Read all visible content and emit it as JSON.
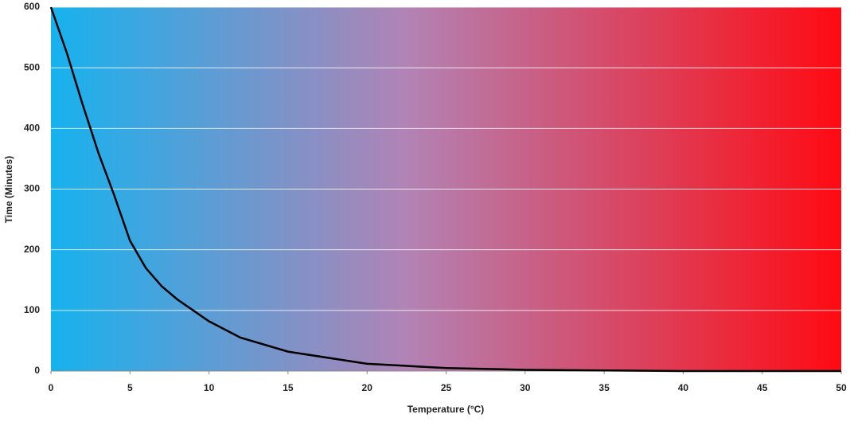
{
  "chart_data": {
    "type": "line",
    "x_label": "Temperature (°C)",
    "y_label": "Time (Minutes)",
    "x": [
      0,
      1,
      2,
      3,
      4,
      5,
      6,
      7,
      8,
      9,
      10,
      12,
      15,
      20,
      25,
      30,
      35,
      40,
      45,
      50
    ],
    "series": [
      {
        "name": "Time",
        "color": "#000000",
        "values": [
          600,
          525,
          440,
          360,
          290,
          215,
          170,
          140,
          118,
          100,
          82,
          55,
          32,
          12,
          5,
          2,
          1,
          0,
          0,
          0
        ]
      }
    ],
    "xlim": [
      0,
      50
    ],
    "xticks": [
      0,
      5,
      10,
      15,
      20,
      25,
      30,
      35,
      40,
      45,
      50
    ],
    "ylim": [
      0,
      600
    ],
    "yticks": [
      0,
      100,
      200,
      300,
      400,
      500,
      600
    ],
    "grid": true,
    "grid_color": "#ffffff",
    "background_gradient": [
      "#16b2ee",
      "#ff0a12"
    ]
  }
}
